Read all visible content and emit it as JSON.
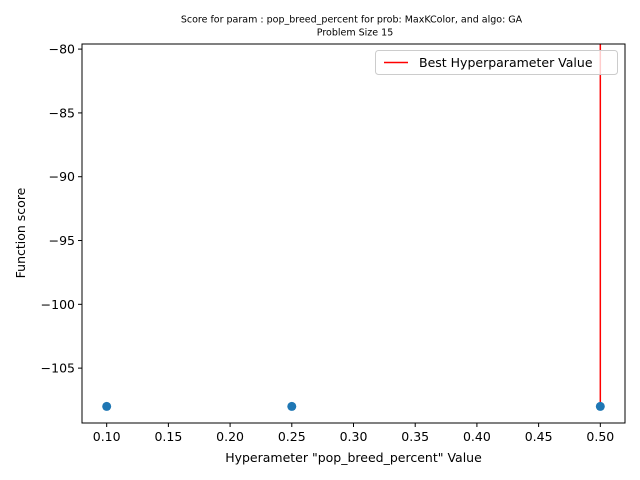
{
  "chart_data": {
    "type": "scatter",
    "title": "Score for param : pop_breed_percent for prob: MaxKColor, and algo: GA",
    "subtitle": "Problem Size 15",
    "xlabel": "Hyperameter \"pop_breed_percent\" Value",
    "ylabel": "Function score",
    "xlim": [
      0.08,
      0.52
    ],
    "ylim": [
      -109.3,
      -79.6
    ],
    "xticks": [
      0.1,
      0.15,
      0.2,
      0.25,
      0.3,
      0.35,
      0.4,
      0.45,
      0.5
    ],
    "xtick_labels": [
      "0.10",
      "0.15",
      "0.20",
      "0.25",
      "0.30",
      "0.35",
      "0.40",
      "0.45",
      "0.50"
    ],
    "yticks": [
      -80,
      -85,
      -90,
      -95,
      -100,
      -105
    ],
    "ytick_labels": [
      "−80",
      "−85",
      "−90",
      "−95",
      "−100",
      "−105"
    ],
    "series": [
      {
        "type": "scatter",
        "color": "#1f77b4",
        "points": [
          {
            "x": 0.1,
            "y": -108
          },
          {
            "x": 0.25,
            "y": -108
          },
          {
            "x": 0.5,
            "y": -108
          }
        ]
      }
    ],
    "best_line": {
      "name": "Best Hyperparameter Value",
      "color": "#ff0000",
      "x": 0.5,
      "y_from": -108,
      "y_to": -79.6
    },
    "legend": {
      "position": "top-right",
      "entries": [
        "Best Hyperparameter Value"
      ]
    },
    "grid": false
  }
}
